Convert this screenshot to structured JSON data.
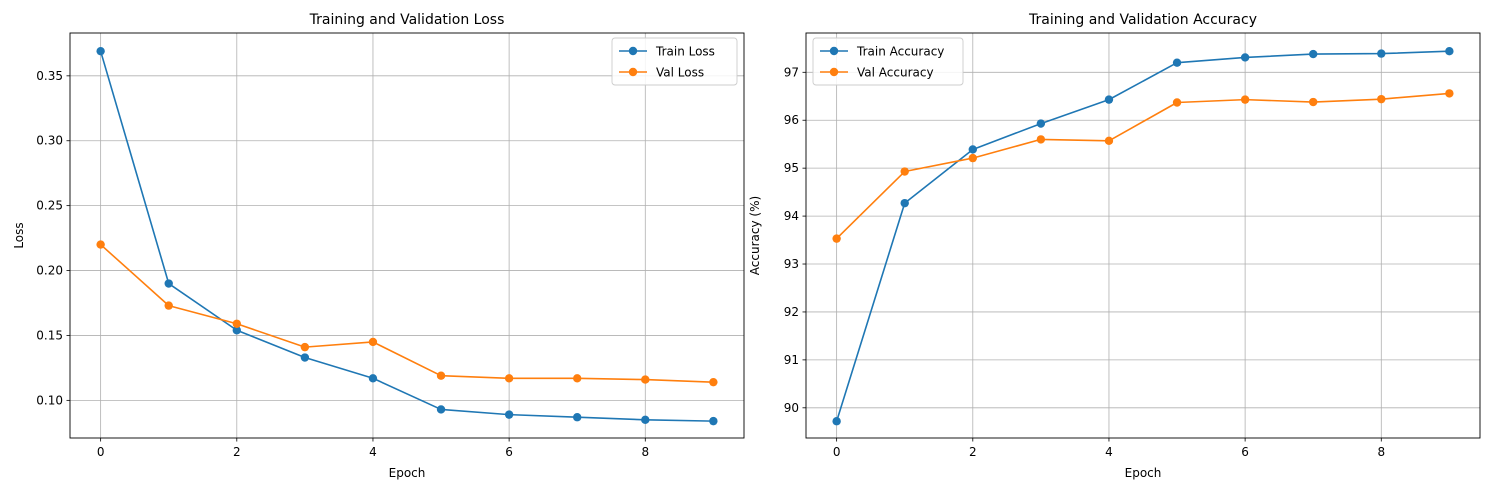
{
  "chart_data": [
    {
      "type": "line",
      "title": "Training and Validation Loss",
      "xlabel": "Epoch",
      "ylabel": "Loss",
      "x": [
        0,
        1,
        2,
        3,
        4,
        5,
        6,
        7,
        8,
        9
      ],
      "xlim": [
        -0.45,
        9.45
      ],
      "ylim": [
        0.071,
        0.383
      ],
      "xticks": [
        0,
        2,
        4,
        6,
        8
      ],
      "xtick_labels": [
        "0",
        "2",
        "4",
        "6",
        "8"
      ],
      "yticks": [
        0.1,
        0.15,
        0.2,
        0.25,
        0.3,
        0.35
      ],
      "ytick_labels": [
        "0.10",
        "0.15",
        "0.20",
        "0.25",
        "0.30",
        "0.35"
      ],
      "grid": true,
      "legend_position": "top-right",
      "series": [
        {
          "name": "Train Loss",
          "color": "#1f77b4",
          "marker": "circle",
          "values": [
            0.369,
            0.19,
            0.154,
            0.133,
            0.117,
            0.093,
            0.089,
            0.087,
            0.085,
            0.084
          ]
        },
        {
          "name": "Val Loss",
          "color": "#ff7f0e",
          "marker": "circle",
          "values": [
            0.22,
            0.173,
            0.159,
            0.141,
            0.145,
            0.119,
            0.117,
            0.117,
            0.116,
            0.114
          ]
        }
      ]
    },
    {
      "type": "line",
      "title": "Training and Validation Accuracy",
      "xlabel": "Epoch",
      "ylabel": "Accuracy (%)",
      "x": [
        0,
        1,
        2,
        3,
        4,
        5,
        6,
        7,
        8,
        9
      ],
      "xlim": [
        -0.45,
        9.45
      ],
      "ylim": [
        89.37,
        97.82
      ],
      "xticks": [
        0,
        2,
        4,
        6,
        8
      ],
      "xtick_labels": [
        "0",
        "2",
        "4",
        "6",
        "8"
      ],
      "yticks": [
        90,
        91,
        92,
        93,
        94,
        95,
        96,
        97
      ],
      "ytick_labels": [
        "90",
        "91",
        "92",
        "93",
        "94",
        "95",
        "96",
        "97"
      ],
      "grid": true,
      "legend_position": "top-left",
      "series": [
        {
          "name": "Train Accuracy",
          "color": "#1f77b4",
          "marker": "circle",
          "values": [
            89.72,
            94.27,
            95.39,
            95.93,
            96.43,
            97.2,
            97.31,
            97.38,
            97.39,
            97.44
          ]
        },
        {
          "name": "Val Accuracy",
          "color": "#ff7f0e",
          "marker": "circle",
          "values": [
            93.53,
            94.93,
            95.21,
            95.6,
            95.57,
            96.37,
            96.43,
            96.38,
            96.44,
            96.56
          ]
        }
      ]
    }
  ]
}
